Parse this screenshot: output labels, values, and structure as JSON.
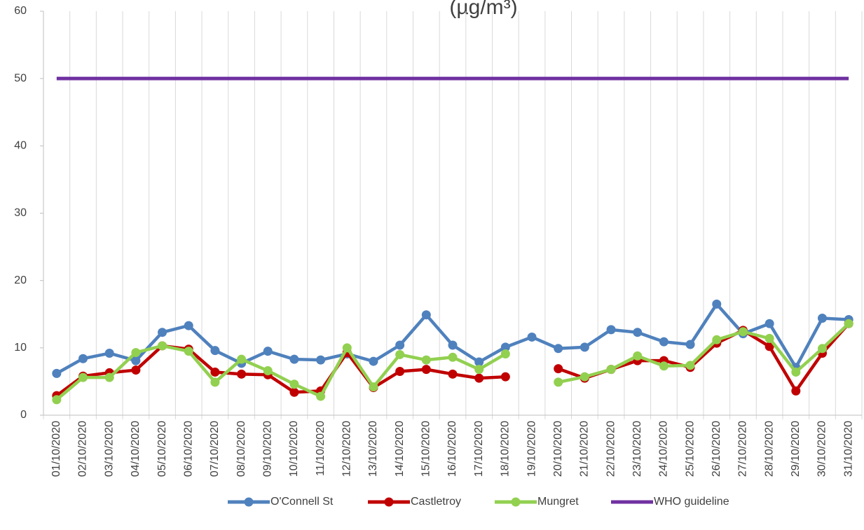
{
  "chart_data": {
    "type": "line",
    "title": "(µg/m³)",
    "categories": [
      "01/10/2020",
      "02/10/2020",
      "03/10/2020",
      "04/10/2020",
      "05/10/2020",
      "06/10/2020",
      "07/10/2020",
      "08/10/2020",
      "09/10/2020",
      "10/10/2020",
      "11/10/2020",
      "12/10/2020",
      "13/10/2020",
      "14/10/2020",
      "15/10/2020",
      "16/10/2020",
      "17/10/2020",
      "18/10/2020",
      "19/10/2020",
      "20/10/2020",
      "21/10/2020",
      "22/10/2020",
      "23/10/2020",
      "24/10/2020",
      "25/10/2020",
      "26/10/2020",
      "27/10/2020",
      "28/10/2020",
      "29/10/2020",
      "30/10/2020",
      "31/10/2020"
    ],
    "series": [
      {
        "name": "O'Connell St",
        "color": "#4f81bd",
        "markers": true,
        "values": [
          6.2,
          8.4,
          9.2,
          8.1,
          12.3,
          13.3,
          9.6,
          7.7,
          9.5,
          8.3,
          8.2,
          9.1,
          8.0,
          10.4,
          14.9,
          10.4,
          7.9,
          10.1,
          11.6,
          9.9,
          10.1,
          12.7,
          12.3,
          10.9,
          10.5,
          16.5,
          12.1,
          13.6,
          7.1,
          14.4,
          14.2
        ]
      },
      {
        "name": "Castletroy",
        "color": "#c00000",
        "markers": true,
        "values": [
          2.9,
          5.8,
          6.3,
          6.7,
          10.3,
          9.8,
          6.4,
          6.1,
          6.0,
          3.4,
          3.6,
          9.3,
          4.1,
          6.5,
          6.8,
          6.1,
          5.5,
          5.7,
          null,
          6.9,
          5.5,
          6.8,
          8.1,
          8.1,
          7.1,
          10.7,
          12.6,
          10.2,
          3.6,
          9.2,
          13.6
        ]
      },
      {
        "name": "Mungret",
        "color": "#92d050",
        "markers": true,
        "values": [
          2.3,
          5.6,
          5.6,
          9.3,
          10.3,
          9.5,
          4.9,
          8.3,
          6.6,
          4.6,
          2.8,
          10.0,
          4.2,
          9.0,
          8.2,
          8.6,
          6.8,
          9.1,
          null,
          4.9,
          5.7,
          6.8,
          8.8,
          7.3,
          7.4,
          11.2,
          12.4,
          11.4,
          6.4,
          9.9,
          13.6
        ]
      },
      {
        "name": "WHO guideline",
        "color": "#7030a0",
        "markers": false,
        "values": [
          50,
          50,
          50,
          50,
          50,
          50,
          50,
          50,
          50,
          50,
          50,
          50,
          50,
          50,
          50,
          50,
          50,
          50,
          50,
          50,
          50,
          50,
          50,
          50,
          50,
          50,
          50,
          50,
          50,
          50,
          50
        ]
      }
    ],
    "ylim": [
      0,
      60
    ],
    "yticks": [
      0,
      10,
      20,
      30,
      40,
      50,
      60
    ],
    "grid": "vertical",
    "legend": "bottom"
  }
}
